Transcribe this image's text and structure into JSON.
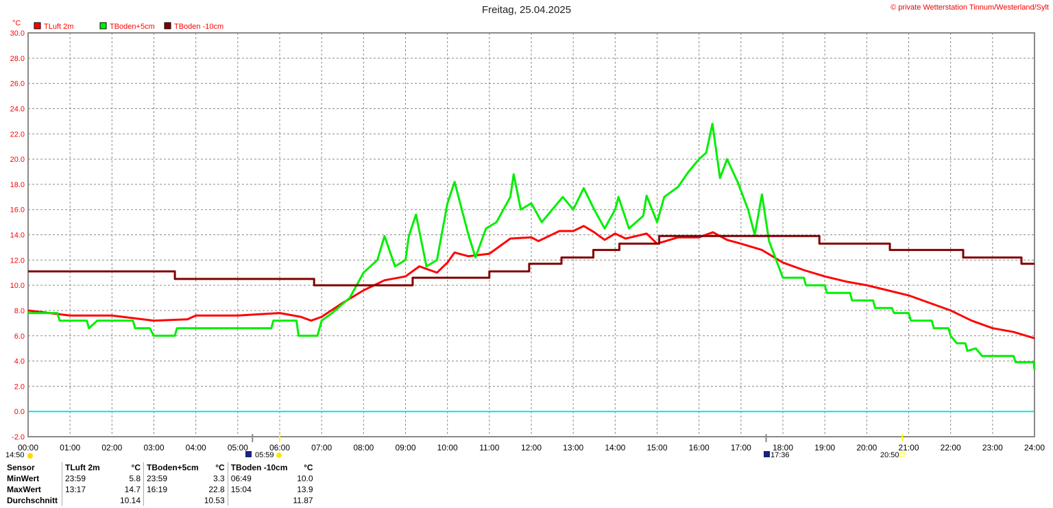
{
  "header": {
    "title": "Freitag, 25.04.2025",
    "copyright": "© private Wetterstation Tinnum/Westerland/Sylt"
  },
  "markers": {
    "left_time": "14:50",
    "sunrise": "05:59",
    "sunset": "17:36",
    "moon": "20:50"
  },
  "chart_data": {
    "type": "line",
    "title": "Freitag, 25.04.2025",
    "ylabel": "°C",
    "ylim": [
      -2,
      30
    ],
    "xlim": [
      0,
      24
    ],
    "yticks": [
      "30.0",
      "28.0",
      "26.0",
      "24.0",
      "22.0",
      "20.0",
      "18.0",
      "16.0",
      "14.0",
      "12.0",
      "10.0",
      "8.0",
      "6.0",
      "4.0",
      "2.0",
      "0.0",
      "-2.0"
    ],
    "xticks": [
      "00:00",
      "01:00",
      "02:00",
      "03:00",
      "04:00",
      "05:00",
      "06:00",
      "07:00",
      "08:00",
      "09:00",
      "10:00",
      "11:00",
      "12:00",
      "13:00",
      "14:00",
      "15:00",
      "16:00",
      "17:00",
      "18:00",
      "19:00",
      "20:00",
      "21:00",
      "22:00",
      "23:00",
      "24:00"
    ],
    "grid": true,
    "legend": "top-left",
    "series": [
      {
        "name": "TLuft 2m",
        "color": "#ff0000",
        "step": false,
        "points": [
          [
            0,
            8.0
          ],
          [
            1,
            7.6
          ],
          [
            2,
            7.6
          ],
          [
            3,
            7.2
          ],
          [
            3.8,
            7.3
          ],
          [
            4,
            7.6
          ],
          [
            5,
            7.6
          ],
          [
            6,
            7.8
          ],
          [
            6.5,
            7.5
          ],
          [
            6.75,
            7.2
          ],
          [
            7,
            7.5
          ],
          [
            7.5,
            8.6
          ],
          [
            8,
            9.6
          ],
          [
            8.5,
            10.4
          ],
          [
            9,
            10.7
          ],
          [
            9.33,
            11.5
          ],
          [
            9.75,
            11.0
          ],
          [
            10,
            11.8
          ],
          [
            10.17,
            12.6
          ],
          [
            10.5,
            12.3
          ],
          [
            11,
            12.5
          ],
          [
            11.5,
            13.7
          ],
          [
            12,
            13.8
          ],
          [
            12.17,
            13.5
          ],
          [
            12.67,
            14.3
          ],
          [
            13,
            14.3
          ],
          [
            13.25,
            14.7
          ],
          [
            13.5,
            14.2
          ],
          [
            13.75,
            13.6
          ],
          [
            14,
            14.1
          ],
          [
            14.25,
            13.7
          ],
          [
            14.75,
            14.1
          ],
          [
            15,
            13.3
          ],
          [
            15.5,
            13.8
          ],
          [
            16,
            13.8
          ],
          [
            16.33,
            14.2
          ],
          [
            16.67,
            13.6
          ],
          [
            17,
            13.3
          ],
          [
            17.5,
            12.8
          ],
          [
            18,
            11.8
          ],
          [
            18.5,
            11.2
          ],
          [
            19,
            10.7
          ],
          [
            19.5,
            10.3
          ],
          [
            20,
            10.0
          ],
          [
            20.5,
            9.6
          ],
          [
            21,
            9.2
          ],
          [
            21.5,
            8.6
          ],
          [
            22,
            8.0
          ],
          [
            22.5,
            7.2
          ],
          [
            23,
            6.6
          ],
          [
            23.5,
            6.3
          ],
          [
            24,
            5.8
          ]
        ]
      },
      {
        "name": "TBoden+5cm",
        "color": "#00ee00",
        "step": false,
        "points": [
          [
            0,
            7.8
          ],
          [
            0.7,
            7.8
          ],
          [
            0.75,
            7.2
          ],
          [
            1.4,
            7.2
          ],
          [
            1.45,
            6.6
          ],
          [
            1.65,
            7.2
          ],
          [
            2.5,
            7.2
          ],
          [
            2.55,
            6.6
          ],
          [
            2.9,
            6.6
          ],
          [
            3,
            6.0
          ],
          [
            3.5,
            6.0
          ],
          [
            3.55,
            6.6
          ],
          [
            5.8,
            6.6
          ],
          [
            5.85,
            7.2
          ],
          [
            6.4,
            7.2
          ],
          [
            6.45,
            6.0
          ],
          [
            6.9,
            6.0
          ],
          [
            7,
            7.2
          ],
          [
            7.25,
            7.8
          ],
          [
            7.67,
            9.0
          ],
          [
            8,
            11.0
          ],
          [
            8.33,
            12.0
          ],
          [
            8.5,
            13.9
          ],
          [
            8.75,
            11.5
          ],
          [
            9,
            12.0
          ],
          [
            9.08,
            13.9
          ],
          [
            9.25,
            15.6
          ],
          [
            9.5,
            11.5
          ],
          [
            9.75,
            12.0
          ],
          [
            10,
            16.5
          ],
          [
            10.17,
            18.2
          ],
          [
            10.5,
            14.0
          ],
          [
            10.67,
            12.2
          ],
          [
            10.92,
            14.5
          ],
          [
            11.17,
            15.0
          ],
          [
            11.5,
            17.0
          ],
          [
            11.58,
            18.8
          ],
          [
            11.75,
            16.0
          ],
          [
            12,
            16.5
          ],
          [
            12.25,
            15.0
          ],
          [
            12.5,
            16.0
          ],
          [
            12.75,
            17.0
          ],
          [
            13,
            16.0
          ],
          [
            13.25,
            17.7
          ],
          [
            13.5,
            16.0
          ],
          [
            13.75,
            14.5
          ],
          [
            14,
            16.0
          ],
          [
            14.08,
            17.0
          ],
          [
            14.33,
            14.5
          ],
          [
            14.67,
            15.5
          ],
          [
            14.75,
            17.1
          ],
          [
            15,
            15.0
          ],
          [
            15.17,
            17.0
          ],
          [
            15.5,
            17.8
          ],
          [
            15.75,
            19.0
          ],
          [
            16,
            20.0
          ],
          [
            16.17,
            20.5
          ],
          [
            16.32,
            22.8
          ],
          [
            16.5,
            18.5
          ],
          [
            16.67,
            20.0
          ],
          [
            16.92,
            18.2
          ],
          [
            17.17,
            16.0
          ],
          [
            17.33,
            14.0
          ],
          [
            17.5,
            17.2
          ],
          [
            17.67,
            13.5
          ],
          [
            18,
            10.6
          ],
          [
            18.5,
            10.6
          ],
          [
            18.55,
            10.0
          ],
          [
            19,
            10.0
          ],
          [
            19.05,
            9.4
          ],
          [
            19.6,
            9.4
          ],
          [
            19.65,
            8.8
          ],
          [
            20.15,
            8.8
          ],
          [
            20.2,
            8.2
          ],
          [
            20.6,
            8.2
          ],
          [
            20.65,
            7.8
          ],
          [
            21,
            7.8
          ],
          [
            21.05,
            7.2
          ],
          [
            21.55,
            7.2
          ],
          [
            21.6,
            6.6
          ],
          [
            21.95,
            6.6
          ],
          [
            22,
            6.0
          ],
          [
            22.15,
            5.4
          ],
          [
            22.35,
            5.4
          ],
          [
            22.4,
            4.8
          ],
          [
            22.6,
            5.0
          ],
          [
            22.75,
            4.4
          ],
          [
            23,
            4.4
          ],
          [
            23.5,
            4.4
          ],
          [
            23.55,
            3.9
          ],
          [
            23.98,
            3.9
          ],
          [
            24,
            3.3
          ]
        ]
      },
      {
        "name": "TBoden -10cm",
        "color": "#800000",
        "step": true,
        "points": [
          [
            0,
            11.1
          ],
          [
            3.5,
            10.5
          ],
          [
            6.82,
            10.0
          ],
          [
            9.17,
            10.6
          ],
          [
            11,
            11.1
          ],
          [
            11.95,
            11.7
          ],
          [
            12.72,
            12.2
          ],
          [
            13.48,
            12.8
          ],
          [
            14.1,
            13.3
          ],
          [
            15.05,
            13.9
          ],
          [
            18.87,
            13.3
          ],
          [
            20.55,
            12.8
          ],
          [
            22.3,
            12.2
          ],
          [
            23.69,
            11.7
          ],
          [
            24,
            11.7
          ]
        ]
      }
    ]
  },
  "stats": {
    "headers": [
      "Sensor",
      "TLuft 2m",
      "°C",
      "TBoden+5cm",
      "°C",
      "TBoden -10cm",
      "°C"
    ],
    "rows": [
      {
        "label": "MinWert",
        "cells": [
          "23:59",
          "5.8",
          "23:59",
          "3.3",
          "06:49",
          "10.0"
        ]
      },
      {
        "label": "MaxWert",
        "cells": [
          "13:17",
          "14.7",
          "16:19",
          "22.8",
          "15:04",
          "13.9"
        ]
      },
      {
        "label": "Durchschnitt",
        "cells": [
          "",
          "10.14",
          "",
          "10.53",
          "",
          "11.87"
        ]
      }
    ]
  }
}
